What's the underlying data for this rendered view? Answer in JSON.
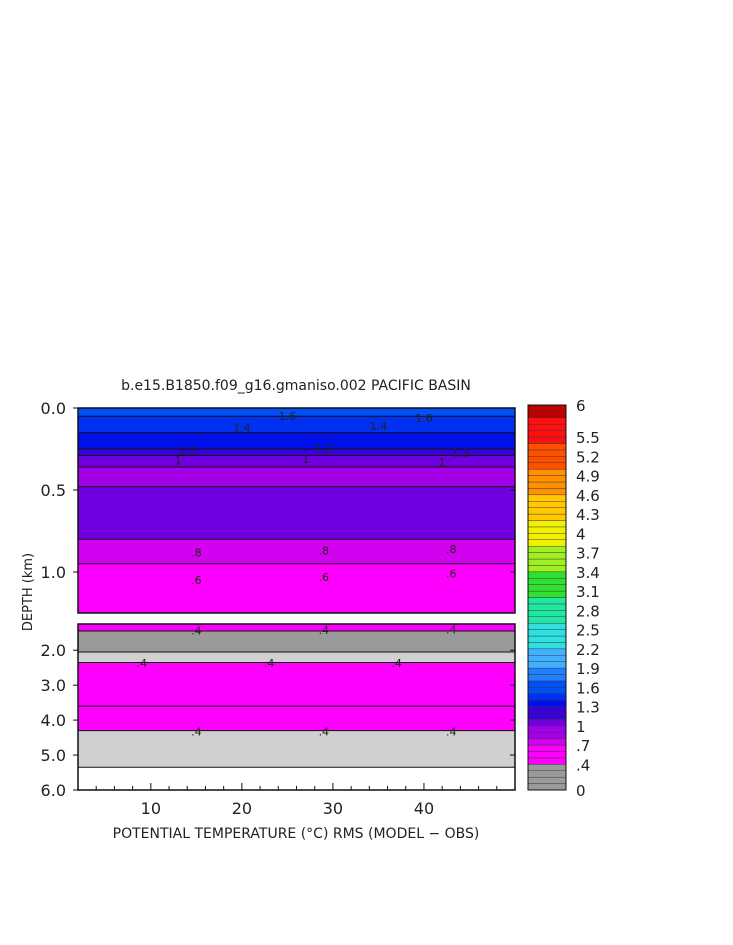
{
  "chart_data": {
    "type": "heatmap",
    "title": "b.e15.B1850.f09_g16.gmaniso.002 PACIFIC BASIN",
    "xlabel": "POTENTIAL TEMPERATURE (°C) RMS (MODEL − OBS)",
    "ylabel": "DEPTH (km)",
    "x_ticks": [
      "10",
      "20",
      "30",
      "40"
    ],
    "x_tick_values": [
      10,
      20,
      30,
      40
    ],
    "xlim": [
      2,
      50
    ],
    "upper_panel": {
      "ylim": [
        0.0,
        1.25
      ],
      "y_ticks": [
        "0.0",
        "0.5",
        "1.0"
      ],
      "y_tick_values": [
        0.0,
        0.5,
        1.0
      ],
      "bands": [
        {
          "from": 0.0,
          "to": 0.05,
          "value": 1.6
        },
        {
          "from": 0.05,
          "to": 0.15,
          "value": 1.5
        },
        {
          "from": 0.15,
          "to": 0.25,
          "value": 1.4
        },
        {
          "from": 0.25,
          "to": 0.29,
          "value": 1.2
        },
        {
          "from": 0.29,
          "to": 0.36,
          "value": 1.05
        },
        {
          "from": 0.36,
          "to": 0.48,
          "value": 0.95
        },
        {
          "from": 0.48,
          "to": 0.8,
          "value": 1.0
        },
        {
          "from": 0.8,
          "to": 0.95,
          "value": 0.8
        },
        {
          "from": 0.95,
          "to": 1.25,
          "value": 0.6
        }
      ],
      "contour_labels": [
        {
          "text": ".8",
          "x": 15,
          "y": 0.88
        },
        {
          "text": ".8",
          "x": 29,
          "y": 0.87
        },
        {
          "text": ".8",
          "x": 43,
          "y": 0.86
        },
        {
          "text": ".6",
          "x": 15,
          "y": 1.05
        },
        {
          "text": ".6",
          "x": 29,
          "y": 1.03
        },
        {
          "text": ".6",
          "x": 43,
          "y": 1.01
        },
        {
          "text": "1.2",
          "x": 14,
          "y": 0.26
        },
        {
          "text": "1.2",
          "x": 29,
          "y": 0.24
        },
        {
          "text": "1.2",
          "x": 44,
          "y": 0.27
        },
        {
          "text": "1",
          "x": 13,
          "y": 0.32
        },
        {
          "text": "1",
          "x": 27,
          "y": 0.31
        },
        {
          "text": "1",
          "x": 42,
          "y": 0.33
        },
        {
          "text": "1.4",
          "x": 20,
          "y": 0.12
        },
        {
          "text": "1.4",
          "x": 35,
          "y": 0.11
        },
        {
          "text": "1.6",
          "x": 25,
          "y": 0.05
        },
        {
          "text": "1.6",
          "x": 40,
          "y": 0.06
        }
      ]
    },
    "lower_panel": {
      "ylim": [
        1.25,
        6.0
      ],
      "y_ticks": [
        "2.0",
        "3.0",
        "4.0",
        "5.0",
        "6.0"
      ],
      "y_tick_values": [
        2.0,
        3.0,
        4.0,
        5.0,
        6.0
      ],
      "bands": [
        {
          "from": 1.25,
          "to": 1.45,
          "value": 0.5
        },
        {
          "from": 1.45,
          "to": 2.05,
          "value": 0.35
        },
        {
          "from": 2.05,
          "to": 2.35,
          "value": 0.4
        },
        {
          "from": 2.35,
          "to": 3.6,
          "value": 0.5
        },
        {
          "from": 3.6,
          "to": 4.3,
          "value": 0.55
        },
        {
          "from": 4.3,
          "to": 5.35,
          "value": 0.4
        },
        {
          "from": 5.35,
          "to": 6.0,
          "value": null
        }
      ],
      "contour_labels": [
        {
          "text": ".4",
          "x": 15,
          "y": 1.43
        },
        {
          "text": ".4",
          "x": 29,
          "y": 1.42
        },
        {
          "text": ".4",
          "x": 43,
          "y": 1.41
        },
        {
          "text": ".4",
          "x": 9,
          "y": 2.37
        },
        {
          "text": ".4",
          "x": 23,
          "y": 2.37
        },
        {
          "text": ".4",
          "x": 37,
          "y": 2.37
        },
        {
          "text": ".4",
          "x": 15,
          "y": 4.32
        },
        {
          "text": ".4",
          "x": 29,
          "y": 4.32
        },
        {
          "text": ".4",
          "x": 43,
          "y": 4.32
        }
      ]
    },
    "colorbar": {
      "min": 0,
      "max": 6,
      "labels": [
        "6",
        "5.5",
        "5.2",
        "4.9",
        "4.6",
        "4.3",
        "4",
        "3.7",
        "3.4",
        "3.1",
        "2.8",
        "2.5",
        "2.2",
        "1.9",
        "1.6",
        "1.3",
        "1",
        ".7",
        ".4",
        "0"
      ],
      "label_values": [
        6,
        5.5,
        5.2,
        4.9,
        4.6,
        4.3,
        4,
        3.7,
        3.4,
        3.1,
        2.8,
        2.5,
        2.2,
        1.9,
        1.6,
        1.3,
        1,
        0.7,
        0.4,
        0
      ]
    }
  }
}
